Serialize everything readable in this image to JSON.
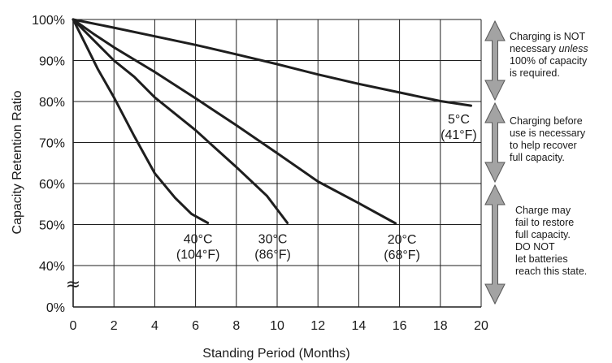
{
  "chart_data": {
    "type": "line",
    "title": "",
    "xlabel": "Standing Period (Months)",
    "ylabel": "Capacity Retention Ratio",
    "xlim": [
      0,
      20
    ],
    "ylim": [
      40,
      100
    ],
    "grid": true,
    "x_ticks": [
      "0",
      "2",
      "4",
      "6",
      "8",
      "10",
      "12",
      "14",
      "16",
      "18",
      "20"
    ],
    "y_ticks": [
      "100%",
      "90%",
      "80%",
      "70%",
      "60%",
      "50%",
      "40%"
    ],
    "y_zero_label": "0%",
    "axis_break_symbol": "≈",
    "series": [
      {
        "label_line1": "5°C",
        "label_line2": "(41°F)",
        "points": [
          [
            0,
            100
          ],
          [
            2,
            98
          ],
          [
            4,
            95.9
          ],
          [
            6,
            93.8
          ],
          [
            8,
            91.5
          ],
          [
            10,
            89.1
          ],
          [
            12,
            86.6
          ],
          [
            14,
            84.3
          ],
          [
            16,
            82.2
          ],
          [
            18,
            80.1
          ],
          [
            19.5,
            79
          ]
        ]
      },
      {
        "label_line1": "20°C",
        "label_line2": "(68°F)",
        "points": [
          [
            0,
            100
          ],
          [
            1,
            96.5
          ],
          [
            2,
            93.2
          ],
          [
            4,
            87.2
          ],
          [
            6,
            80.8
          ],
          [
            8,
            74.2
          ],
          [
            10,
            67.4
          ],
          [
            12,
            60.5
          ],
          [
            14,
            55.2
          ],
          [
            15.8,
            50.3
          ]
        ]
      },
      {
        "label_line1": "30°C",
        "label_line2": "(86°F)",
        "points": [
          [
            0,
            100
          ],
          [
            1,
            95
          ],
          [
            2,
            90
          ],
          [
            3,
            86
          ],
          [
            4,
            81
          ],
          [
            6,
            73
          ],
          [
            7,
            68.5
          ],
          [
            8,
            64
          ],
          [
            9.5,
            57
          ],
          [
            10.5,
            50.4
          ]
        ]
      },
      {
        "label_line1": "40°C",
        "label_line2": "(104°F)",
        "points": [
          [
            0,
            100
          ],
          [
            0.6,
            94
          ],
          [
            1.2,
            88
          ],
          [
            2,
            81
          ],
          [
            3,
            71.5
          ],
          [
            4,
            62.5
          ],
          [
            5,
            56.5
          ],
          [
            5.8,
            52.6
          ],
          [
            6.6,
            50.4
          ]
        ]
      }
    ],
    "regions": [
      {
        "range": [
          80,
          100
        ],
        "lines": [
          "Charging is NOT",
          "necessary ",
          "unless",
          "100% of capacity",
          "is required."
        ]
      },
      {
        "range": [
          60,
          80
        ],
        "lines": [
          "Charging before",
          "use is necessary",
          "to help recover",
          "full capacity."
        ]
      },
      {
        "range": [
          40,
          60
        ],
        "lines": [
          "Charge may",
          "fail to restore",
          "full capacity.",
          "DO NOT",
          "let batteries",
          "reach this state."
        ]
      }
    ],
    "colors": {
      "line": "#1e1e1e",
      "grid": "#1e1e1e",
      "arrow_fill": "#a3a3a3",
      "arrow_stroke": "#555555",
      "background": "#ffffff"
    }
  }
}
